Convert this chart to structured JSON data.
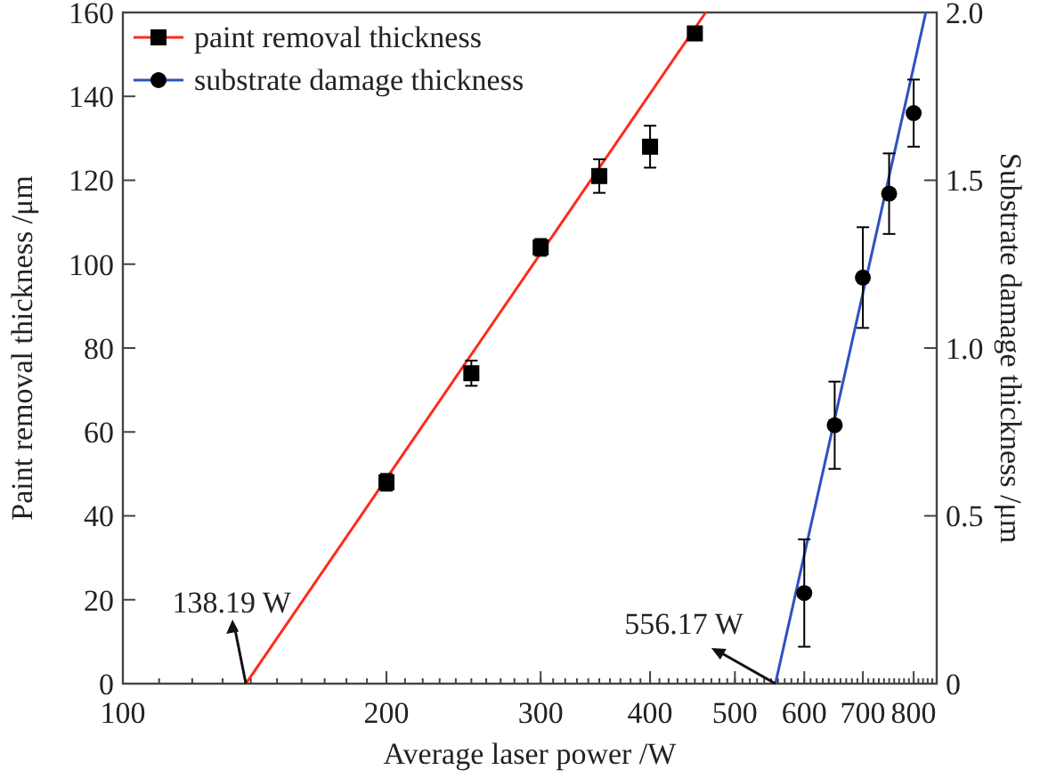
{
  "chart_data": {
    "type": "scatter",
    "xlabel": "Average laser power /W",
    "ylabel": "Paint removal thickness /μm",
    "y2label": "Substrate damage thickness /μm",
    "log": "x",
    "xlim": [
      100,
      850
    ],
    "xticks": [
      100,
      200,
      300,
      400,
      500,
      600,
      700,
      800
    ],
    "ylim": [
      0,
      160
    ],
    "yticks": [
      0,
      20,
      40,
      60,
      80,
      100,
      120,
      140,
      160
    ],
    "y2lim": [
      0,
      2.0
    ],
    "y2ticks": [
      0,
      0.5,
      {
        "value": 1,
        "label": "1.0"
      },
      1.5,
      {
        "value": 2,
        "label": "2.0"
      }
    ],
    "legend": "top left",
    "grid": false,
    "series": [
      {
        "type": "line",
        "name": "paint removal thickness",
        "color": "#ff2a1a",
        "x": [
          138.19,
          463
        ],
        "values": [
          0,
          160
        ],
        "marker": "none"
      },
      {
        "type": "line",
        "name": "substrate damage thickness",
        "color": "#3050c0",
        "x": [
          556.17,
          826
        ],
        "values": [
          0,
          2.0
        ],
        "axis": "y2",
        "marker": "none"
      },
      {
        "color": "#000000",
        "marker": "square",
        "x": [
          200,
          250,
          300,
          350,
          400,
          450
        ],
        "values": [
          48,
          74,
          104,
          121,
          128,
          155
        ],
        "errors": [
          2,
          3,
          2,
          4,
          5,
          1
        ]
      },
      {
        "color": "#000000",
        "marker": "circle",
        "axis": "y2",
        "x": [
          600,
          650,
          700,
          750,
          800
        ],
        "values": [
          0.27,
          0.77,
          1.21,
          1.46,
          1.7
        ],
        "errors": [
          0.16,
          0.13,
          0.15,
          0.12,
          0.1
        ]
      }
    ],
    "annotations": [
      {
        "text": "138.19 W",
        "x": 138.19,
        "y": 0
      },
      {
        "text": "556.17 W",
        "x": 556.17,
        "y": 0
      }
    ]
  }
}
